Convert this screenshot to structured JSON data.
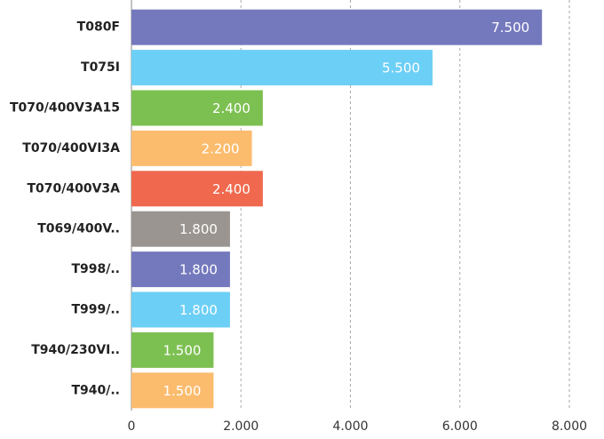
{
  "chart_data": {
    "type": "bar",
    "orientation": "horizontal",
    "categories": [
      "T080F",
      "T075I",
      "T070/400V3A15",
      "T070/400VI3A",
      "T070/400V3A",
      "T069/400V..",
      "T998/..",
      "T999/..",
      "T940/230VI..",
      "T940/.."
    ],
    "values": [
      7500,
      5500,
      2400,
      2200,
      2400,
      1800,
      1800,
      1800,
      1500,
      1500
    ],
    "value_labels": [
      "7.500",
      "5.500",
      "2.400",
      "2.200",
      "2.400",
      "1.800",
      "1.800",
      "1.800",
      "1.500",
      "1.500"
    ],
    "colors": [
      "#7479bd",
      "#6ccff6",
      "#7dc052",
      "#fbbc6e",
      "#f0694e",
      "#9a9590",
      "#7479bd",
      "#6ccff6",
      "#7dc052",
      "#fbbc6e"
    ],
    "xlim": [
      0,
      8000
    ],
    "xticks": [
      0,
      {
        "value": 2000,
        "label": "2.000"
      },
      {
        "value": 4000,
        "label": "4.000"
      },
      {
        "value": 6000,
        "label": "6.000"
      },
      {
        "value": 8000,
        "label": "8.000"
      }
    ],
    "grid": true
  }
}
